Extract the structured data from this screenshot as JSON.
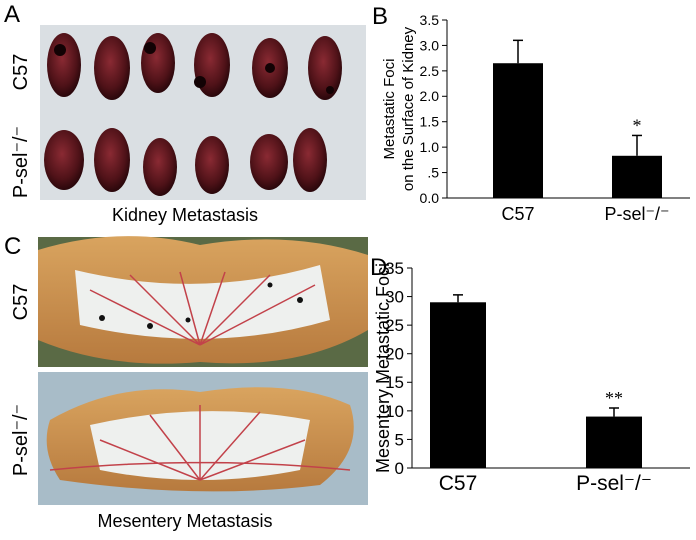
{
  "panels": {
    "a": {
      "letter": "A",
      "row_labels": [
        "C57",
        "P-sel⁻/⁻"
      ],
      "caption": "Kidney Metastasis"
    },
    "c": {
      "letter": "C",
      "row_labels": [
        "C57",
        "P-sel⁻/⁻"
      ],
      "caption": "Mesentery Metastasis"
    },
    "b": {
      "letter": "B"
    },
    "d": {
      "letter": "D"
    }
  },
  "chart_data": [
    {
      "type": "bar",
      "ylabel": [
        "Metastatic Foci",
        "on the Surface of Kidney"
      ],
      "categories": [
        "C57",
        "P-sel⁻/⁻"
      ],
      "values": [
        2.65,
        0.83
      ],
      "errors": [
        0.45,
        0.4
      ],
      "significance": [
        null,
        "*"
      ],
      "color": "#000000",
      "ylim": [
        0,
        3.5
      ],
      "yticks": [
        {
          "value": 0,
          "label": "0.0"
        },
        {
          "value": 0.5,
          "label": ".5"
        },
        {
          "value": 1,
          "label": "1.0"
        },
        {
          "value": 1.5,
          "label": "1.5"
        },
        {
          "value": 2,
          "label": "2.0"
        },
        {
          "value": 2.5,
          "label": "2.5"
        },
        {
          "value": 3,
          "label": "3.0"
        },
        {
          "value": 3.5,
          "label": "3.5"
        }
      ]
    },
    {
      "type": "bar",
      "ylabel": [
        "Mesentery Metastatic Foci"
      ],
      "categories": [
        "C57",
        "P-sel⁻/⁻"
      ],
      "values": [
        29,
        9
      ],
      "errors": [
        1.3,
        1.5
      ],
      "significance": [
        null,
        "**"
      ],
      "color": "#000000",
      "ylim": [
        0,
        35
      ],
      "yticks": [
        0,
        5,
        10,
        15,
        20,
        25,
        30,
        35
      ]
    }
  ]
}
